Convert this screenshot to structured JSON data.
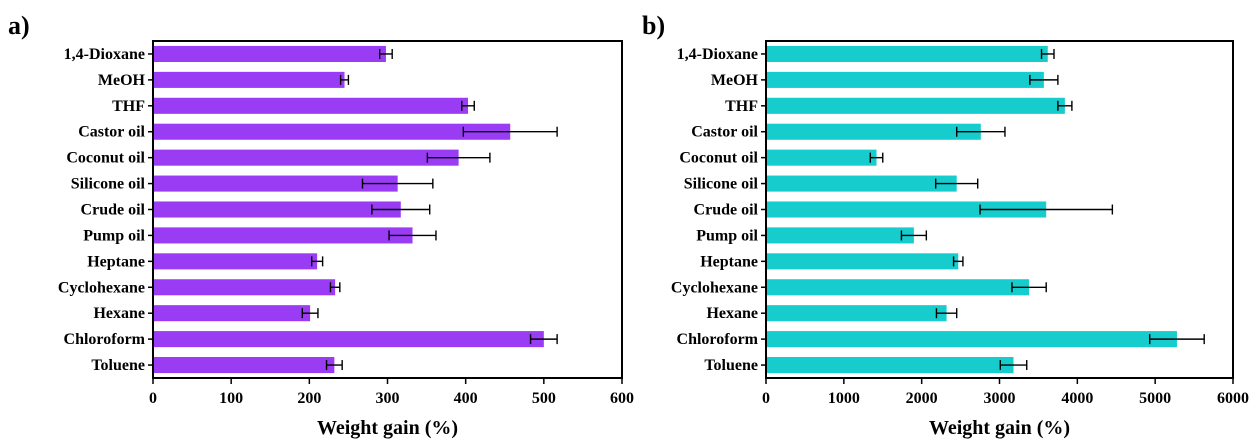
{
  "chart_data": [
    {
      "panel": "a)",
      "type": "bar",
      "orientation": "horizontal",
      "categories": [
        "1,4-Dioxane",
        "MeOH",
        "THF",
        "Castor oil",
        "Coconut oil",
        "Silicone oil",
        "Crude oil",
        "Pump oil",
        "Heptane",
        "Cyclohexane",
        "Hexane",
        "Chloroform",
        "Toluene"
      ],
      "values": [
        298,
        245,
        403,
        457,
        391,
        313,
        317,
        332,
        210,
        233,
        201,
        500,
        232
      ],
      "errors": [
        8,
        5,
        8,
        60,
        40,
        45,
        37,
        30,
        7,
        6,
        10,
        17,
        10
      ],
      "xlabel": "Weight gain (%)",
      "xlim": [
        0,
        600
      ],
      "xticks": [
        0,
        100,
        200,
        300,
        400,
        500,
        600
      ],
      "color": "#9b3cf5",
      "grid": false
    },
    {
      "panel": "b)",
      "type": "bar",
      "orientation": "horizontal",
      "categories": [
        "1,4-Dioxane",
        "MeOH",
        "THF",
        "Castor oil",
        "Coconut oil",
        "Silicone oil",
        "Crude oil",
        "Pump oil",
        "Heptane",
        "Cyclohexane",
        "Hexane",
        "Chloroform",
        "Toluene"
      ],
      "values": [
        3620,
        3570,
        3840,
        2760,
        1420,
        2450,
        3600,
        1900,
        2470,
        3380,
        2320,
        5280,
        3180
      ],
      "errors": [
        80,
        180,
        90,
        310,
        80,
        270,
        850,
        160,
        60,
        220,
        130,
        350,
        170
      ],
      "xlabel": "Weight gain (%)",
      "xlim": [
        0,
        6000
      ],
      "xticks": [
        0,
        1000,
        2000,
        3000,
        4000,
        5000,
        6000
      ],
      "color": "#17cccc",
      "grid": false
    }
  ]
}
